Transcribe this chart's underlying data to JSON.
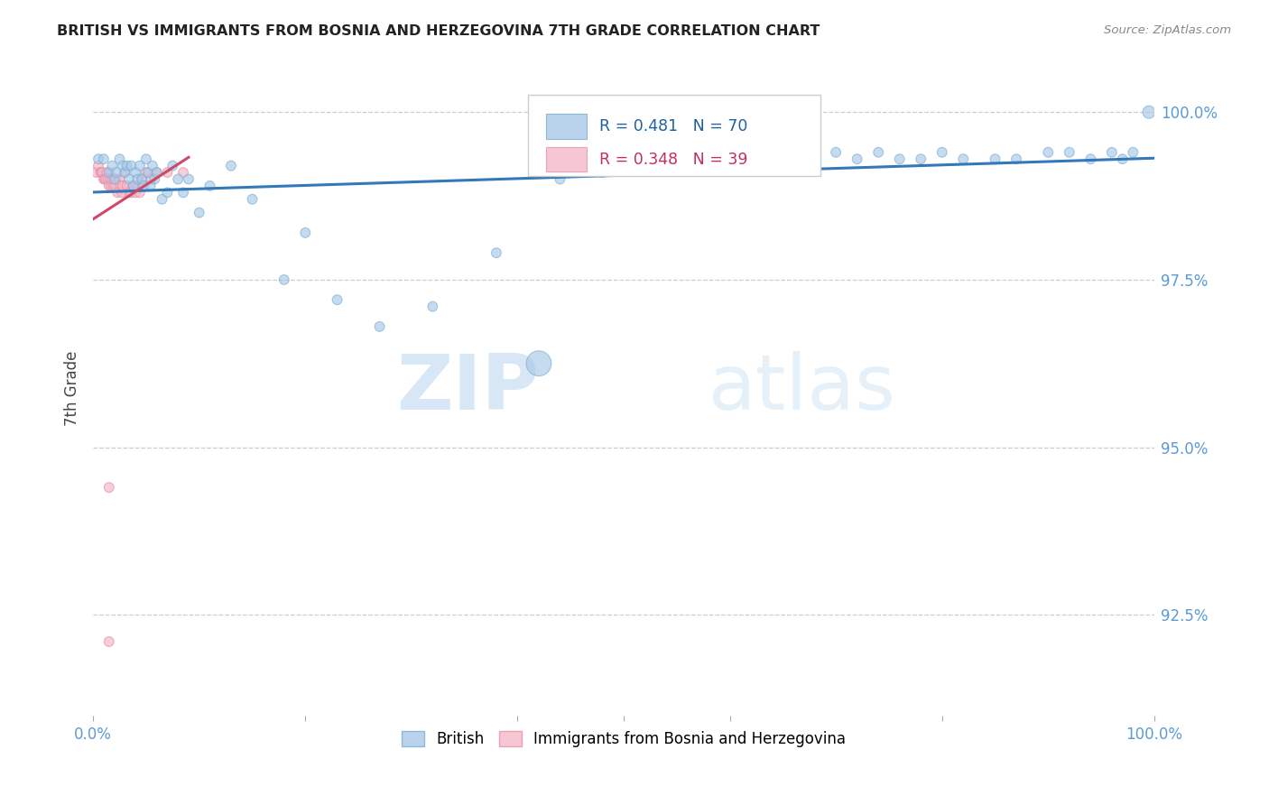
{
  "title": "BRITISH VS IMMIGRANTS FROM BOSNIA AND HERZEGOVINA 7TH GRADE CORRELATION CHART",
  "source": "Source: ZipAtlas.com",
  "ylabel": "7th Grade",
  "ytick_labels": [
    "92.5%",
    "95.0%",
    "97.5%",
    "100.0%"
  ],
  "ytick_values": [
    0.925,
    0.95,
    0.975,
    1.0
  ],
  "xlim": [
    0.0,
    1.0
  ],
  "ylim": [
    0.91,
    1.0075
  ],
  "legend_blue_r": "R = 0.481",
  "legend_blue_n": "N = 70",
  "legend_pink_r": "R = 0.348",
  "legend_pink_n": "N = 39",
  "blue_color": "#a8c8e8",
  "pink_color": "#f4b8c8",
  "blue_edge_color": "#7aaed0",
  "pink_edge_color": "#e890a8",
  "blue_line_color": "#3378b8",
  "pink_line_color": "#d04868",
  "watermark_zip": "ZIP",
  "watermark_atlas": "atlas",
  "blue_scatter_x": [
    0.005,
    0.01,
    0.015,
    0.018,
    0.02,
    0.022,
    0.025,
    0.028,
    0.03,
    0.032,
    0.034,
    0.036,
    0.038,
    0.04,
    0.042,
    0.044,
    0.046,
    0.048,
    0.05,
    0.052,
    0.054,
    0.056,
    0.058,
    0.06,
    0.065,
    0.07,
    0.075,
    0.08,
    0.085,
    0.09,
    0.1,
    0.11,
    0.13,
    0.15,
    0.18,
    0.2,
    0.23,
    0.27,
    0.32,
    0.38,
    0.42,
    0.44,
    0.46,
    0.48,
    0.5,
    0.52,
    0.54,
    0.56,
    0.58,
    0.6,
    0.62,
    0.64,
    0.66,
    0.68,
    0.7,
    0.72,
    0.74,
    0.76,
    0.78,
    0.8,
    0.82,
    0.85,
    0.87,
    0.9,
    0.92,
    0.94,
    0.96,
    0.97,
    0.98,
    0.995
  ],
  "blue_scatter_y": [
    0.993,
    0.993,
    0.991,
    0.992,
    0.99,
    0.991,
    0.993,
    0.992,
    0.991,
    0.992,
    0.99,
    0.992,
    0.989,
    0.991,
    0.99,
    0.992,
    0.99,
    0.989,
    0.993,
    0.991,
    0.989,
    0.992,
    0.99,
    0.991,
    0.987,
    0.988,
    0.992,
    0.99,
    0.988,
    0.99,
    0.985,
    0.989,
    0.992,
    0.987,
    0.975,
    0.982,
    0.972,
    0.968,
    0.971,
    0.979,
    0.9625,
    0.99,
    0.991,
    0.991,
    0.992,
    0.993,
    0.992,
    0.993,
    0.994,
    0.993,
    0.994,
    0.993,
    0.994,
    0.993,
    0.994,
    0.993,
    0.994,
    0.993,
    0.993,
    0.994,
    0.993,
    0.993,
    0.993,
    0.994,
    0.994,
    0.993,
    0.994,
    0.993,
    0.994,
    1.0
  ],
  "blue_scatter_size": [
    60,
    60,
    60,
    60,
    60,
    60,
    60,
    60,
    60,
    60,
    60,
    60,
    60,
    60,
    60,
    60,
    60,
    60,
    60,
    60,
    60,
    60,
    60,
    60,
    60,
    60,
    60,
    60,
    60,
    60,
    60,
    60,
    60,
    60,
    60,
    60,
    60,
    60,
    60,
    60,
    400,
    60,
    60,
    60,
    60,
    60,
    60,
    60,
    60,
    60,
    60,
    60,
    60,
    60,
    60,
    60,
    60,
    60,
    60,
    60,
    60,
    60,
    60,
    60,
    60,
    60,
    60,
    60,
    60,
    100
  ],
  "pink_scatter_x": [
    0.003,
    0.005,
    0.007,
    0.008,
    0.009,
    0.01,
    0.011,
    0.012,
    0.013,
    0.014,
    0.015,
    0.016,
    0.017,
    0.018,
    0.019,
    0.02,
    0.021,
    0.022,
    0.023,
    0.025,
    0.026,
    0.027,
    0.028,
    0.03,
    0.032,
    0.034,
    0.036,
    0.038,
    0.04,
    0.042,
    0.044,
    0.046,
    0.05,
    0.055,
    0.06,
    0.07,
    0.085,
    0.015,
    0.015
  ],
  "pink_scatter_y": [
    0.991,
    0.992,
    0.991,
    0.991,
    0.991,
    0.99,
    0.99,
    0.99,
    0.991,
    0.99,
    0.989,
    0.99,
    0.989,
    0.99,
    0.989,
    0.99,
    0.989,
    0.99,
    0.988,
    0.99,
    0.989,
    0.988,
    0.989,
    0.991,
    0.989,
    0.988,
    0.988,
    0.989,
    0.988,
    0.989,
    0.988,
    0.99,
    0.991,
    0.99,
    0.991,
    0.991,
    0.991,
    0.944,
    0.921
  ],
  "pink_scatter_size": [
    60,
    60,
    60,
    60,
    60,
    60,
    60,
    60,
    60,
    60,
    60,
    60,
    60,
    60,
    60,
    60,
    60,
    60,
    60,
    60,
    60,
    60,
    60,
    60,
    60,
    60,
    60,
    60,
    60,
    60,
    60,
    60,
    60,
    60,
    60,
    60,
    60,
    60,
    60
  ]
}
